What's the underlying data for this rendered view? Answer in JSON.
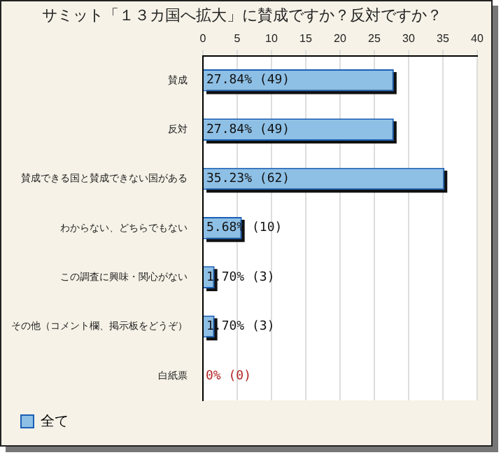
{
  "chart_data": {
    "type": "bar",
    "orientation": "horizontal",
    "title": "サミット「１３カ国へ拡大」に賛成ですか？反対ですか？",
    "categories": [
      "賛成",
      "反対",
      "賛成できる国と賛成できない国がある",
      "わからない、どちらでもない",
      "この調査に興味・関心がない",
      "その他（コメント欄、掲示板をどうぞ）",
      "白紙票"
    ],
    "series": [
      {
        "name": "全て",
        "color": "#8ec0e6",
        "values": [
          27.84,
          27.84,
          35.23,
          5.68,
          1.7,
          1.7,
          0
        ],
        "value_labels": [
          "27.84% (49)",
          "27.84% (49)",
          "35.23% (62)",
          "5.68% (10)",
          "1.70% (3)",
          "1.70% (3)",
          "0% (0)"
        ]
      }
    ],
    "xlim": [
      0,
      40
    ],
    "xticks": [
      0,
      5,
      10,
      15,
      20,
      25,
      30,
      35,
      40
    ],
    "grid": "x",
    "legend": "bottom left"
  }
}
